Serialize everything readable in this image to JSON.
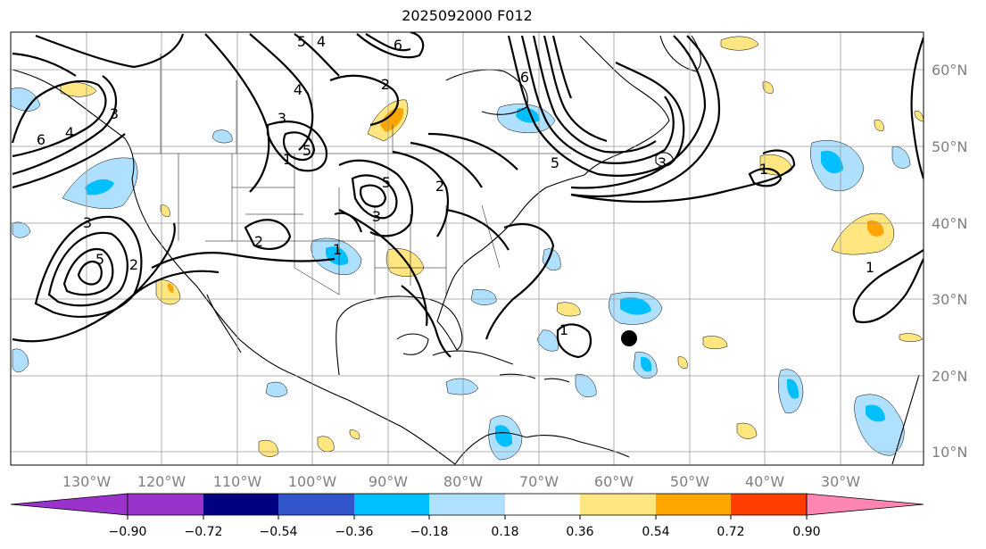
{
  "title": "2025092000 F012",
  "longitude_labels": [
    "130°W",
    "120°W",
    "110°W",
    "100°W",
    "90°W",
    "80°W",
    "70°W",
    "60°W",
    "50°W",
    "40°W",
    "30°W"
  ],
  "latitude_labels": [
    "60°N",
    "50°N",
    "40°N",
    "30°N",
    "20°N",
    "10°N"
  ],
  "colorbar": {
    "tick_labels": [
      "−0.90",
      "−0.72",
      "−0.54",
      "−0.36",
      "−0.18",
      "0.18",
      "0.36",
      "0.54",
      "0.72",
      "0.90"
    ],
    "colors": [
      "#9933cc",
      "#000080",
      "#3355cc",
      "#00bfff",
      "#b0e0ff",
      "#ffffff",
      "#ffe680",
      "#ffa500",
      "#ff3d00",
      "#b22222",
      "#ff85b3",
      "#ff85b3"
    ]
  },
  "storm_marker": {
    "lon": -58,
    "lat": 24.5,
    "color": "#000000"
  },
  "contour_labels": [
    "5",
    "4",
    "6",
    "2",
    "3",
    "4",
    "5",
    "1",
    "6",
    "5",
    "3",
    "6",
    "2",
    "3",
    "5",
    "2",
    "4",
    "3",
    "1",
    "1",
    "1",
    "3",
    "5",
    "2",
    "1"
  ]
}
